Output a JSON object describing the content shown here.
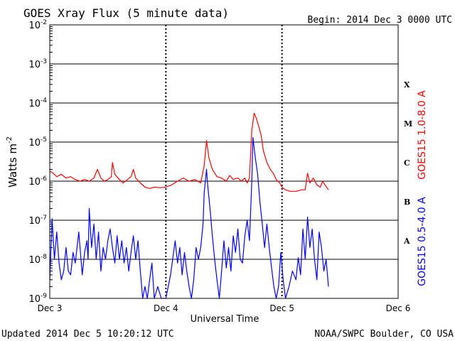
{
  "header": {
    "title": "GOES Xray Flux (5 minute data)",
    "begin": "Begin:  2014 Dec 3 0000 UTC"
  },
  "footer": {
    "updated": "Updated 2014 Dec  5 10:20:12 UTC",
    "credit": "NOAA/SWPC Boulder, CO USA"
  },
  "colors": {
    "long_channel": "#ff0000",
    "short_channel": "#0000ff",
    "axes": "#000000"
  },
  "chart_data": {
    "type": "line",
    "title": "GOES Xray Flux (5 minute data)",
    "xlabel": "Universal Time",
    "ylabel_base": "Watts m",
    "ylabel_exp": "-2",
    "yscale": "log",
    "ylim": [
      1e-09,
      0.01
    ],
    "xlim_days": [
      0,
      3
    ],
    "x_tick_labels": [
      "Dec 3",
      "Dec 4",
      "Dec 5",
      "Dec 6"
    ],
    "y_tick_exponents": [
      "-2",
      "-3",
      "-4",
      "-5",
      "-6",
      "-7",
      "-8",
      "-9"
    ],
    "flare_classes": [
      {
        "label": "X",
        "flux": 0.0003
      },
      {
        "label": "M",
        "flux": 3e-05
      },
      {
        "label": "C",
        "flux": 3e-06
      },
      {
        "label": "B",
        "flux": 3e-07
      },
      {
        "label": "A",
        "flux": 3e-08
      }
    ],
    "grid": "horizontal at each decade, dotted vertical at day boundaries",
    "series": [
      {
        "name": "GOES15 1.0-8.0 A",
        "color": "#ff0000",
        "points": [
          [
            0.0,
            1.8e-06
          ],
          [
            0.03,
            1.6e-06
          ],
          [
            0.06,
            1.3e-06
          ],
          [
            0.1,
            1.5e-06
          ],
          [
            0.14,
            1.2e-06
          ],
          [
            0.18,
            1.3e-06
          ],
          [
            0.22,
            1.1e-06
          ],
          [
            0.26,
            1e-06
          ],
          [
            0.3,
            1.1e-06
          ],
          [
            0.34,
            1e-06
          ],
          [
            0.38,
            1.2e-06
          ],
          [
            0.41,
            2e-06
          ],
          [
            0.44,
            1.2e-06
          ],
          [
            0.47,
            1e-06
          ],
          [
            0.5,
            1.1e-06
          ],
          [
            0.53,
            1.3e-06
          ],
          [
            0.54,
            3e-06
          ],
          [
            0.56,
            1.5e-06
          ],
          [
            0.6,
            1.1e-06
          ],
          [
            0.63,
            9e-07
          ],
          [
            0.67,
            1.1e-06
          ],
          [
            0.7,
            1.3e-06
          ],
          [
            0.72,
            2e-06
          ],
          [
            0.74,
            1.2e-06
          ],
          [
            0.78,
            9e-07
          ],
          [
            0.82,
            7e-07
          ],
          [
            0.86,
            6.5e-07
          ],
          [
            0.9,
            7e-07
          ],
          [
            0.95,
            6.8e-07
          ],
          [
            1.0,
            7e-07
          ],
          [
            1.05,
            8e-07
          ],
          [
            1.1,
            1e-06
          ],
          [
            1.15,
            1.2e-06
          ],
          [
            1.2,
            1e-06
          ],
          [
            1.25,
            1.1e-06
          ],
          [
            1.3,
            9e-07
          ],
          [
            1.33,
            2.5e-06
          ],
          [
            1.35,
            1.1e-05
          ],
          [
            1.37,
            4e-06
          ],
          [
            1.4,
            2e-06
          ],
          [
            1.44,
            1.3e-06
          ],
          [
            1.48,
            1.2e-06
          ],
          [
            1.52,
            1e-06
          ],
          [
            1.55,
            1.4e-06
          ],
          [
            1.58,
            1.1e-06
          ],
          [
            1.62,
            1.2e-06
          ],
          [
            1.65,
            1e-06
          ],
          [
            1.68,
            1.2e-06
          ],
          [
            1.7,
            9e-07
          ],
          [
            1.72,
            1.2e-06
          ],
          [
            1.74,
            2e-05
          ],
          [
            1.76,
            5.5e-05
          ],
          [
            1.78,
            4e-05
          ],
          [
            1.8,
            2.5e-05
          ],
          [
            1.82,
            1.5e-05
          ],
          [
            1.84,
            6e-06
          ],
          [
            1.87,
            3e-06
          ],
          [
            1.9,
            2e-06
          ],
          [
            1.93,
            1.5e-06
          ],
          [
            1.95,
            1.1e-06
          ],
          [
            1.98,
            9e-07
          ],
          [
            2.0,
            7e-07
          ],
          [
            2.03,
            6e-07
          ],
          [
            2.07,
            5.5e-07
          ],
          [
            2.12,
            5.5e-07
          ],
          [
            2.17,
            6e-07
          ],
          [
            2.2,
            6e-07
          ],
          [
            2.22,
            1.6e-06
          ],
          [
            2.24,
            9e-07
          ],
          [
            2.27,
            1.2e-06
          ],
          [
            2.3,
            8e-07
          ],
          [
            2.33,
            7e-07
          ],
          [
            2.35,
            1e-06
          ],
          [
            2.37,
            8e-07
          ],
          [
            2.4,
            6e-07
          ]
        ]
      },
      {
        "name": "GOES15 0.5-4.0 A",
        "color": "#0000ff",
        "points": [
          [
            0.0,
            3e-09
          ],
          [
            0.02,
            1.1e-07
          ],
          [
            0.04,
            1e-08
          ],
          [
            0.06,
            5e-08
          ],
          [
            0.08,
            8e-09
          ],
          [
            0.1,
            3e-09
          ],
          [
            0.12,
            5e-09
          ],
          [
            0.14,
            2e-08
          ],
          [
            0.16,
            5e-09
          ],
          [
            0.18,
            4e-09
          ],
          [
            0.2,
            1.5e-08
          ],
          [
            0.22,
            8e-09
          ],
          [
            0.25,
            5e-08
          ],
          [
            0.28,
            4e-09
          ],
          [
            0.3,
            1.5e-08
          ],
          [
            0.32,
            3e-08
          ],
          [
            0.33,
            1e-08
          ],
          [
            0.34,
            2e-07
          ],
          [
            0.36,
            2e-08
          ],
          [
            0.38,
            8e-08
          ],
          [
            0.4,
            1e-08
          ],
          [
            0.42,
            5e-08
          ],
          [
            0.44,
            5e-09
          ],
          [
            0.46,
            2e-08
          ],
          [
            0.48,
            1e-08
          ],
          [
            0.5,
            3e-08
          ],
          [
            0.52,
            6e-08
          ],
          [
            0.54,
            2e-08
          ],
          [
            0.56,
            8e-09
          ],
          [
            0.58,
            4e-08
          ],
          [
            0.6,
            1e-08
          ],
          [
            0.62,
            3e-08
          ],
          [
            0.64,
            8e-09
          ],
          [
            0.66,
            2e-08
          ],
          [
            0.68,
            5e-09
          ],
          [
            0.7,
            1.5e-08
          ],
          [
            0.72,
            4e-08
          ],
          [
            0.74,
            1e-08
          ],
          [
            0.76,
            3e-08
          ],
          [
            0.78,
            5e-09
          ],
          [
            0.8,
            1e-09
          ],
          [
            0.82,
            2e-09
          ],
          [
            0.84,
            1e-09
          ],
          [
            0.86,
            3e-09
          ],
          [
            0.88,
            8e-09
          ],
          [
            0.9,
            1e-09
          ],
          [
            0.93,
            2e-09
          ],
          [
            0.96,
            1e-09
          ],
          [
            1.0,
            1e-09
          ],
          [
            1.04,
            4e-09
          ],
          [
            1.08,
            3e-08
          ],
          [
            1.1,
            8e-09
          ],
          [
            1.12,
            2e-08
          ],
          [
            1.14,
            4e-09
          ],
          [
            1.16,
            1.5e-08
          ],
          [
            1.18,
            5e-09
          ],
          [
            1.2,
            2e-09
          ],
          [
            1.22,
            1e-09
          ],
          [
            1.24,
            3e-09
          ],
          [
            1.26,
            2e-08
          ],
          [
            1.28,
            1e-08
          ],
          [
            1.3,
            2e-08
          ],
          [
            1.32,
            8e-08
          ],
          [
            1.33,
            5e-07
          ],
          [
            1.35,
            2e-06
          ],
          [
            1.36,
            8e-07
          ],
          [
            1.38,
            2e-07
          ],
          [
            1.4,
            4e-08
          ],
          [
            1.42,
            1e-08
          ],
          [
            1.44,
            3e-09
          ],
          [
            1.46,
            1e-09
          ],
          [
            1.48,
            5e-09
          ],
          [
            1.5,
            3e-08
          ],
          [
            1.52,
            6e-09
          ],
          [
            1.54,
            2e-08
          ],
          [
            1.56,
            5e-09
          ],
          [
            1.58,
            4e-08
          ],
          [
            1.6,
            1.5e-08
          ],
          [
            1.62,
            6e-08
          ],
          [
            1.64,
            1e-08
          ],
          [
            1.66,
            8e-09
          ],
          [
            1.68,
            4e-08
          ],
          [
            1.7,
            1e-07
          ],
          [
            1.72,
            3e-08
          ],
          [
            1.74,
            1e-06
          ],
          [
            1.75,
            1.3e-05
          ],
          [
            1.77,
            4e-06
          ],
          [
            1.79,
            1.5e-06
          ],
          [
            1.81,
            3e-07
          ],
          [
            1.83,
            8e-08
          ],
          [
            1.85,
            2e-08
          ],
          [
            1.87,
            8e-08
          ],
          [
            1.89,
            2e-08
          ],
          [
            1.91,
            6e-09
          ],
          [
            1.93,
            2e-09
          ],
          [
            1.95,
            1e-09
          ],
          [
            1.97,
            2e-09
          ],
          [
            1.99,
            1.5e-08
          ],
          [
            2.01,
            3e-09
          ],
          [
            2.03,
            1e-09
          ],
          [
            2.06,
            2e-09
          ],
          [
            2.09,
            5e-09
          ],
          [
            2.12,
            3e-09
          ],
          [
            2.14,
            1.1e-08
          ],
          [
            2.16,
            4e-09
          ],
          [
            2.18,
            6e-08
          ],
          [
            2.2,
            1e-08
          ],
          [
            2.22,
            1.2e-07
          ],
          [
            2.24,
            2e-08
          ],
          [
            2.26,
            6e-08
          ],
          [
            2.28,
            1e-08
          ],
          [
            2.3,
            3e-09
          ],
          [
            2.32,
            5e-08
          ],
          [
            2.34,
            2e-08
          ],
          [
            2.36,
            5e-09
          ],
          [
            2.38,
            1e-08
          ],
          [
            2.4,
            2e-09
          ]
        ]
      }
    ]
  }
}
